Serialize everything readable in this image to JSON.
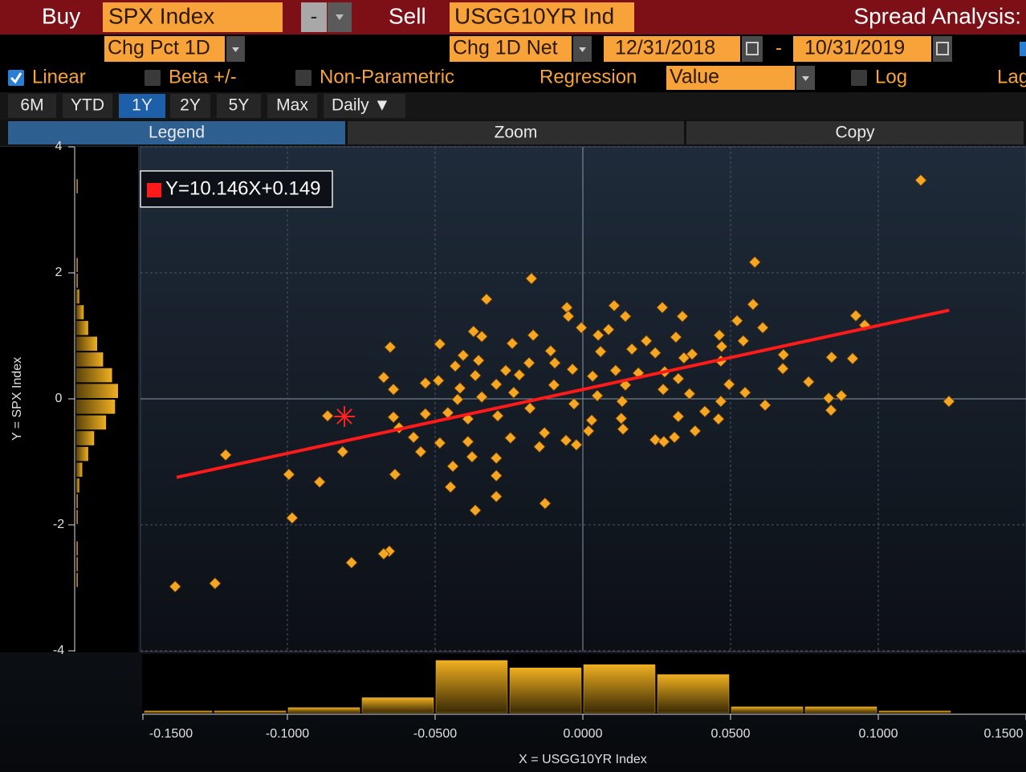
{
  "toolbar": {
    "buy_label": "Buy",
    "buy_security": "SPX Index",
    "minus": "-",
    "sell_label": "Sell",
    "sell_security": "USGG10YR Ind",
    "title": "Spread Analysis:",
    "y_field": "Chg Pct 1D",
    "x_field": "Chg 1D Net",
    "start_date": "12/31/2018",
    "date_sep": "-",
    "end_date": "10/31/2019"
  },
  "options": {
    "checkboxes": [
      {
        "label": "Linear",
        "checked": true
      },
      {
        "label": "Beta +/-",
        "checked": false
      },
      {
        "label": "Non-Parametric",
        "checked": false
      }
    ],
    "regression_label": "Regression",
    "regression_value": "Value",
    "log": {
      "label": "Log",
      "checked": false
    },
    "lag": "Lag"
  },
  "periods": {
    "items": [
      "6M",
      "YTD",
      "1Y",
      "2Y",
      "5Y",
      "Max"
    ],
    "selected": 2,
    "frequency": "Daily ▼"
  },
  "buttons": {
    "items": [
      "Legend",
      "Zoom",
      "Copy"
    ],
    "active": 0
  },
  "chart_data": {
    "type": "scatter",
    "x_label": "X = USGG10YR Index",
    "y_label": "Y = SPX Index",
    "xlim": [
      -0.15,
      0.15
    ],
    "ylim": [
      -4,
      4
    ],
    "xticks": [
      {
        "value": -0.15,
        "label": "-0.1500"
      },
      {
        "value": -0.1,
        "label": "-0.1000"
      },
      {
        "value": -0.05,
        "label": "-0.0500"
      },
      {
        "value": 0,
        "label": "0.0000"
      },
      {
        "value": 0.05,
        "label": "0.0500"
      },
      {
        "value": 0.1,
        "label": "0.1000"
      },
      {
        "value": 0.15,
        "label": "0.1500"
      }
    ],
    "yticks": [
      -4,
      -2,
      0,
      2,
      4
    ],
    "grid": true,
    "series": [
      {
        "color": "#f5a623",
        "x": [
          0.1144,
          0.0582,
          -0.0174,
          -0.0326,
          0.0576,
          0.0106,
          0.0269,
          -0.0054,
          0.0144,
          0.0337,
          0.0924,
          0.0522,
          -0.0049,
          0.0954,
          -0.0005,
          0.0609,
          -0.037,
          0.0052,
          0.0462,
          -0.0168,
          -0.0342,
          0.0087,
          0.0315,
          0.0543,
          -0.0484,
          -0.0239,
          -0.0652,
          0.0215,
          0.047,
          0.006,
          0.0166,
          0.0245,
          -0.0405,
          -0.0109,
          0.0679,
          0.0842,
          0.0913,
          0.0342,
          -0.0353,
          0.037,
          -0.0182,
          0.0467,
          -0.0432,
          -0.0095,
          -0.0035,
          -0.0261,
          0.0677,
          0.0111,
          0.0277,
          0.0188,
          -0.0364,
          -0.0215,
          -0.0674,
          0.0033,
          0.0323,
          -0.0489,
          0.0764,
          -0.0533,
          -0.0293,
          0.0495,
          -0.0098,
          0.0144,
          -0.0641,
          -0.0416,
          0.0272,
          -0.0234,
          0.0549,
          0.0361,
          0.0049,
          0.0875,
          -0.0342,
          0.0832,
          -0.0424,
          0.1239,
          0.0133,
          0.0467,
          0.0617,
          -0.003,
          -0.0179,
          0.084,
          -0.0457,
          -0.0864,
          0.0413,
          -0.0641,
          -0.0389,
          -0.0288,
          -0.0533,
          0.013,
          0.0323,
          0.003,
          0.0459,
          -0.0622,
          0.0136,
          0.0019,
          0.038,
          -0.0245,
          -0.013,
          -0.0573,
          0.0245,
          -0.0484,
          -0.0389,
          -0.0057,
          0.0274,
          -0.0022,
          0.031,
          -0.0147,
          -0.0549,
          -0.0813,
          -0.1209,
          -0.0375,
          -0.0293,
          -0.044,
          -0.0995,
          -0.0636,
          -0.0293,
          -0.0891,
          -0.0448,
          -0.0293,
          -0.0128,
          -0.0364,
          -0.0984,
          -0.0655,
          -0.0674,
          -0.0783,
          -0.1245,
          -0.138
        ],
        "values": [
          3.47,
          2.17,
          1.91,
          1.58,
          1.5,
          1.48,
          1.45,
          1.45,
          1.31,
          1.31,
          1.32,
          1.24,
          1.31,
          1.17,
          1.13,
          1.13,
          1.07,
          1.01,
          1.01,
          1.01,
          0.99,
          1.1,
          0.98,
          0.92,
          0.87,
          0.88,
          0.82,
          0.92,
          0.83,
          0.75,
          0.79,
          0.73,
          0.69,
          0.76,
          0.7,
          0.66,
          0.64,
          0.65,
          0.61,
          0.71,
          0.57,
          0.6,
          0.52,
          0.57,
          0.47,
          0.45,
          0.48,
          0.45,
          0.43,
          0.41,
          0.37,
          0.38,
          0.34,
          0.36,
          0.32,
          0.29,
          0.27,
          0.25,
          0.23,
          0.23,
          0.22,
          0.22,
          0.15,
          0.17,
          0.15,
          0.1,
          0.1,
          0.08,
          0.05,
          0.05,
          0.03,
          0.01,
          -0.01,
          -0.04,
          -0.04,
          -0.04,
          -0.1,
          -0.08,
          -0.15,
          -0.18,
          -0.22,
          -0.27,
          -0.2,
          -0.29,
          -0.32,
          -0.27,
          -0.24,
          -0.31,
          -0.28,
          -0.34,
          -0.32,
          -0.46,
          -0.48,
          -0.51,
          -0.51,
          -0.62,
          -0.54,
          -0.61,
          -0.65,
          -0.7,
          -0.68,
          -0.66,
          -0.68,
          -0.73,
          -0.61,
          -0.76,
          -0.84,
          -0.84,
          -0.89,
          -0.92,
          -0.94,
          -1.07,
          -1.2,
          -1.2,
          -1.22,
          -1.32,
          -1.4,
          -1.55,
          -1.66,
          -1.77,
          -1.89,
          -2.42,
          -2.46,
          -2.6,
          -2.93,
          -2.98
        ]
      }
    ],
    "regression": {
      "label": "Y=10.146X+0.149",
      "color": "#ff1a1a",
      "x": [
        -0.1375,
        0.124
      ],
      "values": [
        -1.246,
        1.407
      ]
    },
    "latest": {
      "x": -0.0807,
      "y": -0.28,
      "color": "#ff2020"
    },
    "x_hist": {
      "color": "#e8a820",
      "bins": [
        -0.15,
        -0.125,
        -0.1,
        -0.075,
        -0.05,
        -0.025,
        0,
        0.025,
        0.05,
        0.075,
        0.1,
        0.125
      ],
      "counts": [
        2,
        2,
        6,
        18,
        63,
        54,
        58,
        46,
        7,
        7,
        2
      ]
    },
    "y_hist": {
      "color": "#e8a820",
      "bins": [
        -3,
        -2.75,
        -2.5,
        -2.25,
        -2,
        -1.75,
        -1.5,
        -1.25,
        -1,
        -0.75,
        -0.5,
        -0.25,
        0,
        0.25,
        0.5,
        0.75,
        1,
        1.25,
        1.5,
        1.75,
        2,
        2.25,
        2.5,
        2.75,
        3,
        3.25,
        3.5
      ],
      "counts": [
        1,
        1,
        1,
        0,
        1,
        1,
        2,
        4,
        8,
        12,
        20,
        26,
        28,
        24,
        18,
        14,
        8,
        5,
        2,
        1,
        1,
        0,
        0,
        0,
        0,
        1
      ]
    }
  }
}
